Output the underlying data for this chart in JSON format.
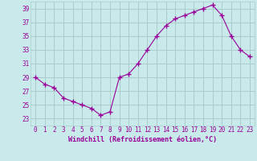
{
  "x": [
    0,
    1,
    2,
    3,
    4,
    5,
    6,
    7,
    8,
    9,
    10,
    11,
    12,
    13,
    14,
    15,
    16,
    17,
    18,
    19,
    20,
    21,
    22,
    23
  ],
  "y": [
    29,
    28,
    27.5,
    26,
    25.5,
    25,
    24.5,
    23.5,
    24,
    29,
    29.5,
    31,
    33,
    35,
    36.5,
    37.5,
    38,
    38.5,
    39,
    39.5,
    38,
    35,
    33,
    32
  ],
  "line_color": "#990099",
  "marker": "+",
  "marker_size": 4,
  "bg_color": "#c8eaea",
  "grid_color": "#aacccc",
  "xlabel": "Windchill (Refroidissement éolien,°C)",
  "xlabel_color": "#990099",
  "ylim": [
    22,
    40
  ],
  "xlim": [
    -0.5,
    23.5
  ],
  "yticks": [
    23,
    25,
    27,
    29,
    31,
    33,
    35,
    37,
    39
  ],
  "xticks": [
    0,
    1,
    2,
    3,
    4,
    5,
    6,
    7,
    8,
    9,
    10,
    11,
    12,
    13,
    14,
    15,
    16,
    17,
    18,
    19,
    20,
    21,
    22,
    23
  ],
  "tick_color": "#990099",
  "tick_label_size": 5.5,
  "xlabel_fontsize": 6.0
}
